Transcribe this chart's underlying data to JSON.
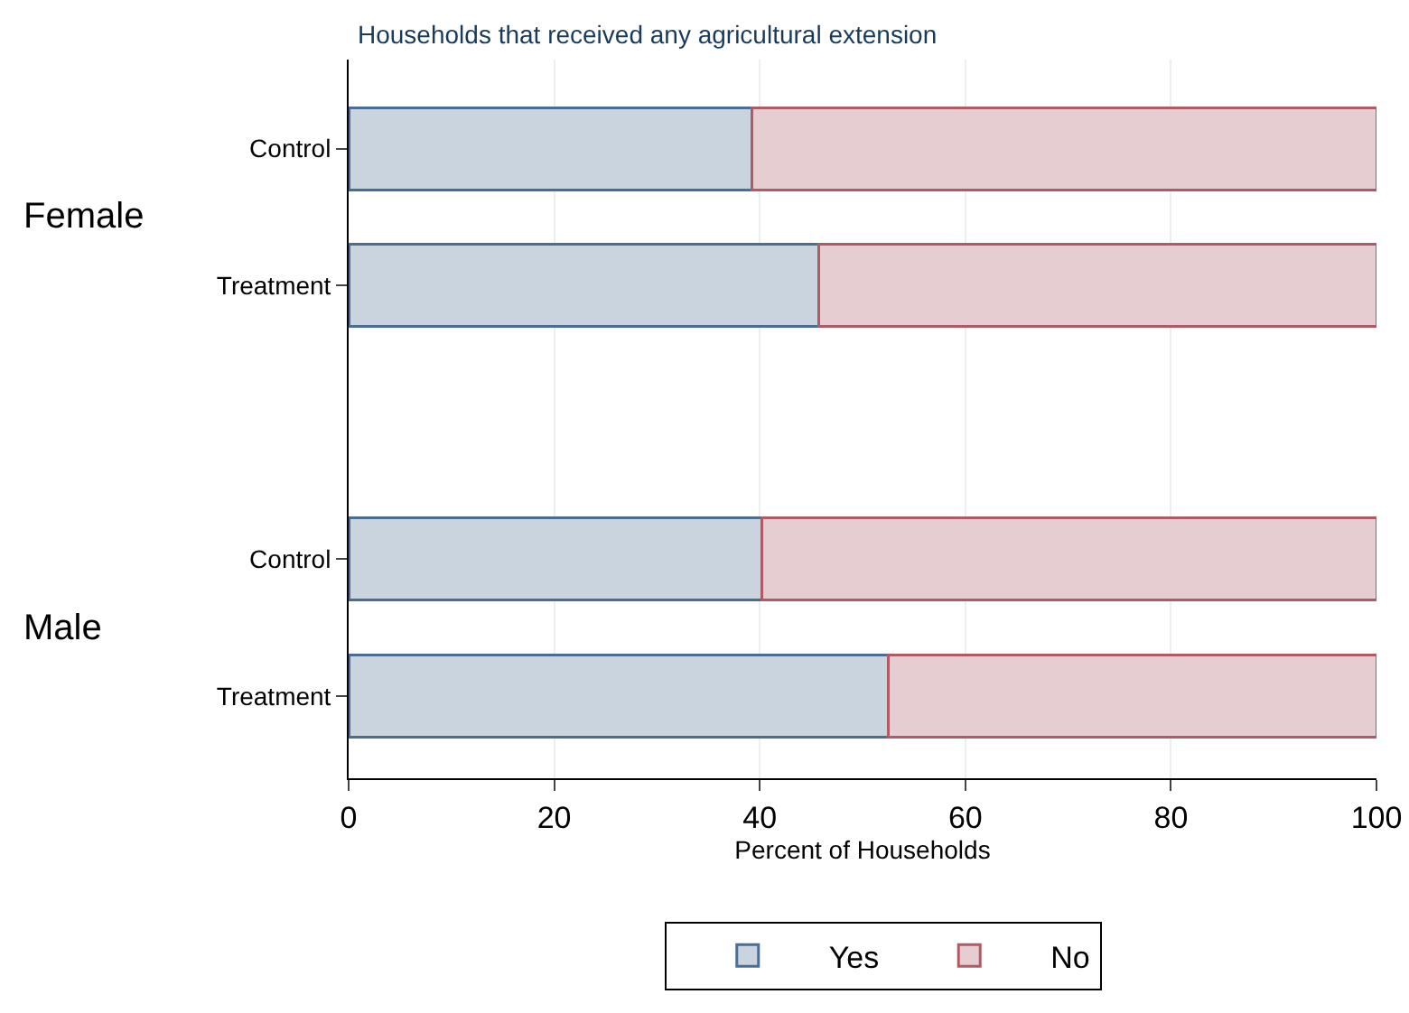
{
  "chart_data": {
    "type": "bar",
    "orientation": "horizontal",
    "stacked": true,
    "title": "Households that received any agricultural extension",
    "xlabel": "Percent of Households",
    "categories": [
      "Control",
      "Treatment",
      null,
      "Control",
      "Treatment"
    ],
    "series": [
      {
        "name": "Yes",
        "color": "#c9d4df",
        "values": [
          39.2,
          45.7,
          null,
          40.2,
          52.5
        ]
      },
      {
        "name": "No",
        "color": "#e5cdd1",
        "values": [
          60.8,
          54.3,
          null,
          59.8,
          47.5
        ]
      }
    ],
    "annotations": [
      "Female",
      "Male"
    ],
    "xlim": [
      0,
      100
    ],
    "xticks": [
      0,
      20,
      40,
      60,
      80,
      100
    ],
    "grid": "x",
    "legend": "bottom"
  }
}
